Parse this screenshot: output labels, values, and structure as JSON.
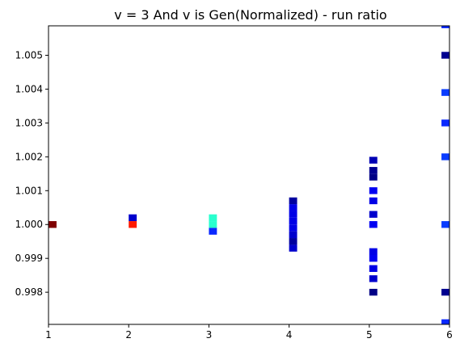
{
  "chart_data": {
    "type": "heatmap",
    "title": "v = 3 And v is Gen(Normalized) - run ratio",
    "xlabel": "",
    "ylabel": "",
    "xlim": [
      1,
      6
    ],
    "ylim": [
      0.99705,
      1.00587
    ],
    "grid": false,
    "x_ticks": [
      1,
      2,
      3,
      4,
      5,
      6
    ],
    "x_tick_labels": [
      "1",
      "2",
      "3",
      "4",
      "5",
      "6"
    ],
    "y_ticks": [
      0.998,
      0.999,
      1.0,
      1.001,
      1.002,
      1.003,
      1.004,
      1.005
    ],
    "y_tick_labels": [
      "0.998",
      "0.999",
      "1.000",
      "1.001",
      "1.002",
      "1.003",
      "1.004",
      "1.005"
    ],
    "bin_width": 0.1,
    "bin_height": 0.0002,
    "cells": [
      {
        "x": 1.05,
        "y": 1.0,
        "color": "#7f0000"
      },
      {
        "x": 2.05,
        "y": 1.0002,
        "color": "#0000cd"
      },
      {
        "x": 2.05,
        "y": 1.0,
        "color": "#ff1a00"
      },
      {
        "x": 3.05,
        "y": 1.0002,
        "color": "#29ffce"
      },
      {
        "x": 3.05,
        "y": 1.0,
        "color": "#29ffce"
      },
      {
        "x": 3.05,
        "y": 0.9998,
        "color": "#0a28ff"
      },
      {
        "x": 4.05,
        "y": 1.0007,
        "color": "#00009f"
      },
      {
        "x": 4.05,
        "y": 1.0005,
        "color": "#0000e6"
      },
      {
        "x": 4.05,
        "y": 1.0003,
        "color": "#0000e6"
      },
      {
        "x": 4.05,
        "y": 1.0001,
        "color": "#0000e6"
      },
      {
        "x": 4.05,
        "y": 0.9999,
        "color": "#0000e6"
      },
      {
        "x": 4.05,
        "y": 0.9997,
        "color": "#0000cd"
      },
      {
        "x": 4.05,
        "y": 0.9995,
        "color": "#00009f"
      },
      {
        "x": 4.05,
        "y": 0.9993,
        "color": "#0000cd"
      },
      {
        "x": 5.05,
        "y": 1.0019,
        "color": "#0000b4"
      },
      {
        "x": 5.05,
        "y": 1.0016,
        "color": "#000090"
      },
      {
        "x": 5.05,
        "y": 1.0014,
        "color": "#000086"
      },
      {
        "x": 5.05,
        "y": 1.001,
        "color": "#0000f2"
      },
      {
        "x": 5.05,
        "y": 1.0007,
        "color": "#0000e6"
      },
      {
        "x": 5.05,
        "y": 1.0003,
        "color": "#0000cd"
      },
      {
        "x": 5.05,
        "y": 1.0,
        "color": "#0000f2"
      },
      {
        "x": 5.05,
        "y": 0.9992,
        "color": "#0000e6"
      },
      {
        "x": 5.05,
        "y": 0.999,
        "color": "#0000f2"
      },
      {
        "x": 5.05,
        "y": 0.9987,
        "color": "#0000e6"
      },
      {
        "x": 5.05,
        "y": 0.9984,
        "color": "#0000cd"
      },
      {
        "x": 5.05,
        "y": 0.998,
        "color": "#000086"
      },
      {
        "x": 5.95,
        "y": 1.0059,
        "color": "#0a28ff"
      },
      {
        "x": 5.95,
        "y": 1.005,
        "color": "#000090"
      },
      {
        "x": 5.95,
        "y": 1.0039,
        "color": "#0a3cff"
      },
      {
        "x": 5.95,
        "y": 1.003,
        "color": "#0a28ff"
      },
      {
        "x": 5.95,
        "y": 1.002,
        "color": "#0a3cff"
      },
      {
        "x": 5.95,
        "y": 1.0,
        "color": "#0a3cff"
      },
      {
        "x": 5.95,
        "y": 0.998,
        "color": "#000090"
      },
      {
        "x": 5.95,
        "y": 0.9971,
        "color": "#0a28ff"
      }
    ]
  }
}
